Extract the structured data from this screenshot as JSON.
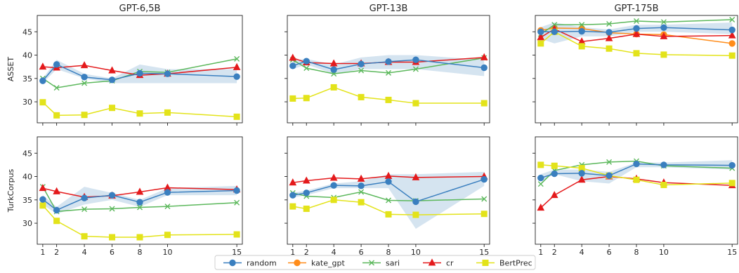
{
  "chart_data": {
    "type": "line",
    "x": [
      1,
      2,
      4,
      6,
      8,
      10,
      15
    ],
    "xticks": [
      "1",
      "2",
      "4",
      "6",
      "8",
      "10",
      "15"
    ],
    "ylim": [
      25.5,
      48.5
    ],
    "yticks": [
      30,
      35,
      40,
      45
    ],
    "grid": false,
    "legend_position": "bottom-center",
    "colors": {
      "random": "#3a7fbf",
      "kate_gpt": "#ff8c1a",
      "sari": "#5cb85c",
      "cr": "#e41a1c",
      "BertPrec": "#e3e31a",
      "band": "#b3cde3"
    },
    "legend": [
      {
        "key": "random",
        "label": "random",
        "marker": "circle"
      },
      {
        "key": "kate_gpt",
        "label": "kate_gpt",
        "marker": "circle"
      },
      {
        "key": "sari",
        "label": "sari",
        "marker": "x"
      },
      {
        "key": "cr",
        "label": "cr",
        "marker": "triangle"
      },
      {
        "key": "BertPrec",
        "label": "BertPrec",
        "marker": "square"
      }
    ],
    "columns": [
      "GPT-6,5B",
      "GPT-13B",
      "GPT-175B"
    ],
    "rows": [
      "ASSET",
      "TurkCorpus"
    ],
    "panels": [
      {
        "row": 0,
        "col": 0,
        "band": {
          "lower": [
            34.0,
            37.0,
            35.0,
            34.0,
            34.0,
            34.0,
            34.0
          ],
          "upper": [
            35.0,
            39.0,
            36.0,
            35.0,
            38.0,
            37.0,
            37.0
          ]
        },
        "series": [
          {
            "name": "sari",
            "values": [
              35.0,
              33.0,
              34.0,
              34.5,
              36.5,
              36.3,
              39.2
            ]
          },
          {
            "name": "cr",
            "values": [
              37.5,
              37.3,
              37.8,
              36.7,
              35.7,
              36.0,
              37.4
            ]
          },
          {
            "name": "BertPrec",
            "values": [
              29.9,
              27.1,
              27.2,
              28.7,
              27.5,
              27.7,
              26.8
            ]
          },
          {
            "name": "random",
            "values": [
              34.5,
              38.0,
              35.3,
              34.7,
              36.1,
              36.0,
              35.4
            ]
          }
        ]
      },
      {
        "row": 0,
        "col": 1,
        "band": {
          "lower": [
            37.0,
            38.0,
            36.0,
            37.0,
            37.0,
            37.0,
            35.5
          ],
          "upper": [
            39.0,
            39.2,
            38.0,
            39.5,
            40.0,
            40.0,
            39.0
          ]
        },
        "series": [
          {
            "name": "sari",
            "values": [
              39.0,
              37.2,
              36.0,
              36.7,
              36.2,
              37.0,
              39.4
            ]
          },
          {
            "name": "cr",
            "values": [
              39.4,
              38.4,
              38.2,
              38.2,
              38.5,
              38.5,
              39.5
            ]
          },
          {
            "name": "BertPrec",
            "values": [
              30.7,
              30.8,
              33.1,
              31.0,
              30.4,
              29.7,
              29.7
            ]
          },
          {
            "name": "random",
            "values": [
              37.7,
              38.7,
              36.9,
              38.1,
              38.6,
              39.0,
              37.3
            ]
          }
        ]
      },
      {
        "row": 0,
        "col": 2,
        "band": {
          "lower": [
            43.5,
            42.5,
            44.0,
            44.0,
            45.0,
            45.0,
            44.5
          ],
          "upper": [
            46.0,
            47.0,
            46.0,
            45.5,
            46.5,
            46.5,
            47.0
          ]
        },
        "series": [
          {
            "name": "kate_gpt",
            "values": [
              45.3,
              45.8,
              45.7,
              44.8,
              44.5,
              44.4,
              42.5
            ]
          },
          {
            "name": "sari",
            "values": [
              44.5,
              46.5,
              46.5,
              46.7,
              47.3,
              47.1,
              47.6
            ]
          },
          {
            "name": "cr",
            "values": [
              43.8,
              45.6,
              42.9,
              43.6,
              44.5,
              44.0,
              44.2
            ]
          },
          {
            "name": "BertPrec",
            "values": [
              42.5,
              45.0,
              41.9,
              41.4,
              40.4,
              40.1,
              39.9
            ]
          },
          {
            "name": "random",
            "values": [
              45.0,
              45.0,
              45.1,
              44.9,
              45.7,
              45.9,
              45.4
            ]
          }
        ]
      },
      {
        "row": 1,
        "col": 0,
        "band": {
          "lower": [
            34.0,
            32.0,
            34.0,
            35.0,
            33.5,
            36.0,
            36.0
          ],
          "upper": [
            36.0,
            33.5,
            37.8,
            36.5,
            35.0,
            37.5,
            38.0
          ]
        },
        "series": [
          {
            "name": "sari",
            "values": [
              37.8,
              32.5,
              33.0,
              33.1,
              33.4,
              33.6,
              34.4
            ]
          },
          {
            "name": "cr",
            "values": [
              37.5,
              36.8,
              35.6,
              35.9,
              36.7,
              37.6,
              37.2
            ]
          },
          {
            "name": "BertPrec",
            "values": [
              33.8,
              30.5,
              27.2,
              27.0,
              27.0,
              27.5,
              27.6
            ]
          },
          {
            "name": "random",
            "values": [
              35.1,
              32.8,
              35.4,
              36.0,
              34.5,
              36.6,
              37.0
            ]
          }
        ]
      },
      {
        "row": 1,
        "col": 1,
        "band": {
          "lower": [
            35.5,
            36.0,
            37.5,
            37.5,
            37.5,
            28.8,
            38.0
          ],
          "upper": [
            36.5,
            37.0,
            38.5,
            39.0,
            40.5,
            40.5,
            41.0
          ]
        },
        "series": [
          {
            "name": "sari",
            "values": [
              36.5,
              35.8,
              35.5,
              36.7,
              34.9,
              34.8,
              35.2
            ]
          },
          {
            "name": "cr",
            "values": [
              38.7,
              39.1,
              39.7,
              39.5,
              40.1,
              39.8,
              40.0
            ]
          },
          {
            "name": "BertPrec",
            "values": [
              33.6,
              33.1,
              35.0,
              34.5,
              31.9,
              31.8,
              32.0
            ]
          },
          {
            "name": "random",
            "values": [
              36.0,
              36.5,
              38.1,
              38.0,
              38.9,
              34.6,
              39.4
            ]
          }
        ]
      },
      {
        "row": 1,
        "col": 2,
        "band": {
          "lower": [
            39.0,
            40.5,
            39.0,
            38.5,
            42.0,
            42.0,
            41.5
          ],
          "upper": [
            40.5,
            41.5,
            41.5,
            41.0,
            43.0,
            43.0,
            43.5
          ]
        },
        "series": [
          {
            "name": "sari",
            "values": [
              38.4,
              41.3,
              42.5,
              43.1,
              43.3,
              42.3,
              41.8
            ]
          },
          {
            "name": "cr",
            "values": [
              33.3,
              36.0,
              39.3,
              40.0,
              39.5,
              38.7,
              38.1
            ]
          },
          {
            "name": "BertPrec",
            "values": [
              42.5,
              42.3,
              41.8,
              40.2,
              39.3,
              38.2,
              38.6
            ]
          },
          {
            "name": "random",
            "values": [
              39.7,
              40.6,
              40.7,
              40.2,
              42.7,
              42.5,
              42.4
            ]
          }
        ]
      }
    ]
  }
}
